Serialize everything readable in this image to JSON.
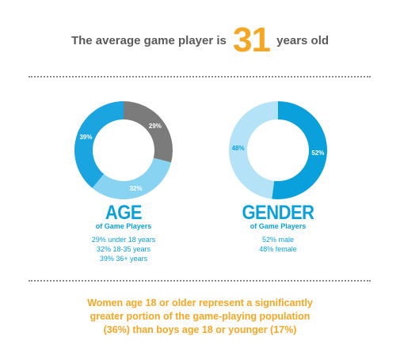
{
  "headline": {
    "before": "The average game player is",
    "number": "31",
    "after": "years old"
  },
  "panels": {
    "age": {
      "title": "AGE",
      "subtitle": "of Game Players",
      "stats": [
        "29% under 18 years",
        "32% 18-35 years",
        "39% 36+ years"
      ]
    },
    "gender": {
      "title": "GENDER",
      "subtitle": "of Game Players",
      "stats": [
        "52% male",
        "48% female"
      ]
    }
  },
  "footnote": {
    "lines": [
      "Women age 18 or older represent a significantly",
      "greater portion of the game-playing population",
      "(36%) than boys age 18 or younger (17%)"
    ]
  },
  "colors": {
    "accent_orange": "#f5a623",
    "blue": "#0aa0dc",
    "light_blue": "#88d3f2",
    "gray": "#7b7b7b",
    "headline_gray": "#5a5a5a"
  },
  "chart_data": [
    {
      "type": "pie",
      "donut": true,
      "title": "AGE",
      "subtitle": "of Game Players",
      "categories": [
        "under 18 years",
        "18-35 years",
        "36+ years"
      ],
      "values": [
        29,
        32,
        39
      ],
      "labels": [
        "29%",
        "32%",
        "39%"
      ],
      "colors": [
        "#7b7b7b",
        "#88d3f2",
        "#1aa4e0"
      ],
      "label_colors": [
        "#ffffff",
        "#ffffff",
        "#ffffff"
      ]
    },
    {
      "type": "pie",
      "donut": true,
      "title": "GENDER",
      "subtitle": "of Game Players",
      "categories": [
        "male",
        "female"
      ],
      "values": [
        52,
        48
      ],
      "labels": [
        "52%",
        "48%"
      ],
      "colors": [
        "#0aa0dc",
        "#b4e3f8"
      ],
      "label_colors": [
        "#ffffff",
        "#0aa0dc"
      ]
    }
  ]
}
